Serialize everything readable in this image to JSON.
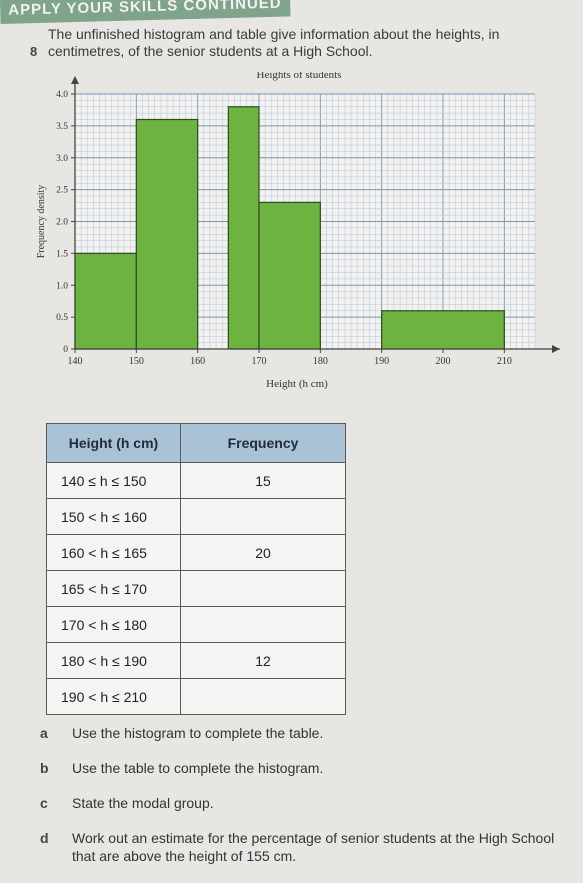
{
  "banner": "APPLY YOUR SKILLS CONTINUED",
  "question": {
    "number": "8",
    "text": "The unfinished histogram and table give information about the heights, in centimetres, of the senior students at a High School."
  },
  "chart_data": {
    "type": "bar",
    "title": "Heights of students",
    "xlabel": "Height (h cm)",
    "ylabel": "Frequency density",
    "xlim": [
      140,
      215
    ],
    "ylim": [
      0,
      4.0
    ],
    "x_ticks": [
      140,
      150,
      160,
      170,
      180,
      190,
      200,
      210
    ],
    "y_ticks": [
      0,
      0.5,
      1.0,
      1.5,
      2.0,
      2.5,
      3.0,
      3.5,
      4.0
    ],
    "y_tick_labels": [
      "0",
      "0.5",
      "1.0",
      "1.5",
      "2.0",
      "2.5",
      "3.0",
      "3.5",
      "4.0"
    ],
    "grid": true,
    "bars": [
      {
        "x0": 140,
        "x1": 150,
        "value": 1.5
      },
      {
        "x0": 150,
        "x1": 160,
        "value": 3.6
      },
      {
        "x0": 165,
        "x1": 170,
        "value": 3.8
      },
      {
        "x0": 170,
        "x1": 180,
        "value": 2.3
      },
      {
        "x0": 190,
        "x1": 210,
        "value": 0.6
      }
    ],
    "bar_color": "#6db33f"
  },
  "table": {
    "headers": [
      "Height (h cm)",
      "Frequency"
    ],
    "rows": [
      [
        "140 ≤ h ≤ 150",
        "15"
      ],
      [
        "150 < h ≤ 160",
        ""
      ],
      [
        "160 < h ≤ 165",
        "20"
      ],
      [
        "165 < h ≤ 170",
        ""
      ],
      [
        "170 < h ≤ 180",
        ""
      ],
      [
        "180 < h ≤ 190",
        "12"
      ],
      [
        "190 < h ≤ 210",
        ""
      ]
    ]
  },
  "parts": [
    {
      "label": "a",
      "text": "Use the histogram to complete the table."
    },
    {
      "label": "b",
      "text": "Use the table to complete the histogram."
    },
    {
      "label": "c",
      "text": "State the modal group."
    },
    {
      "label": "d",
      "text": "Work out an estimate for the percentage of senior students at the High School that are above the height of 155 cm."
    }
  ]
}
